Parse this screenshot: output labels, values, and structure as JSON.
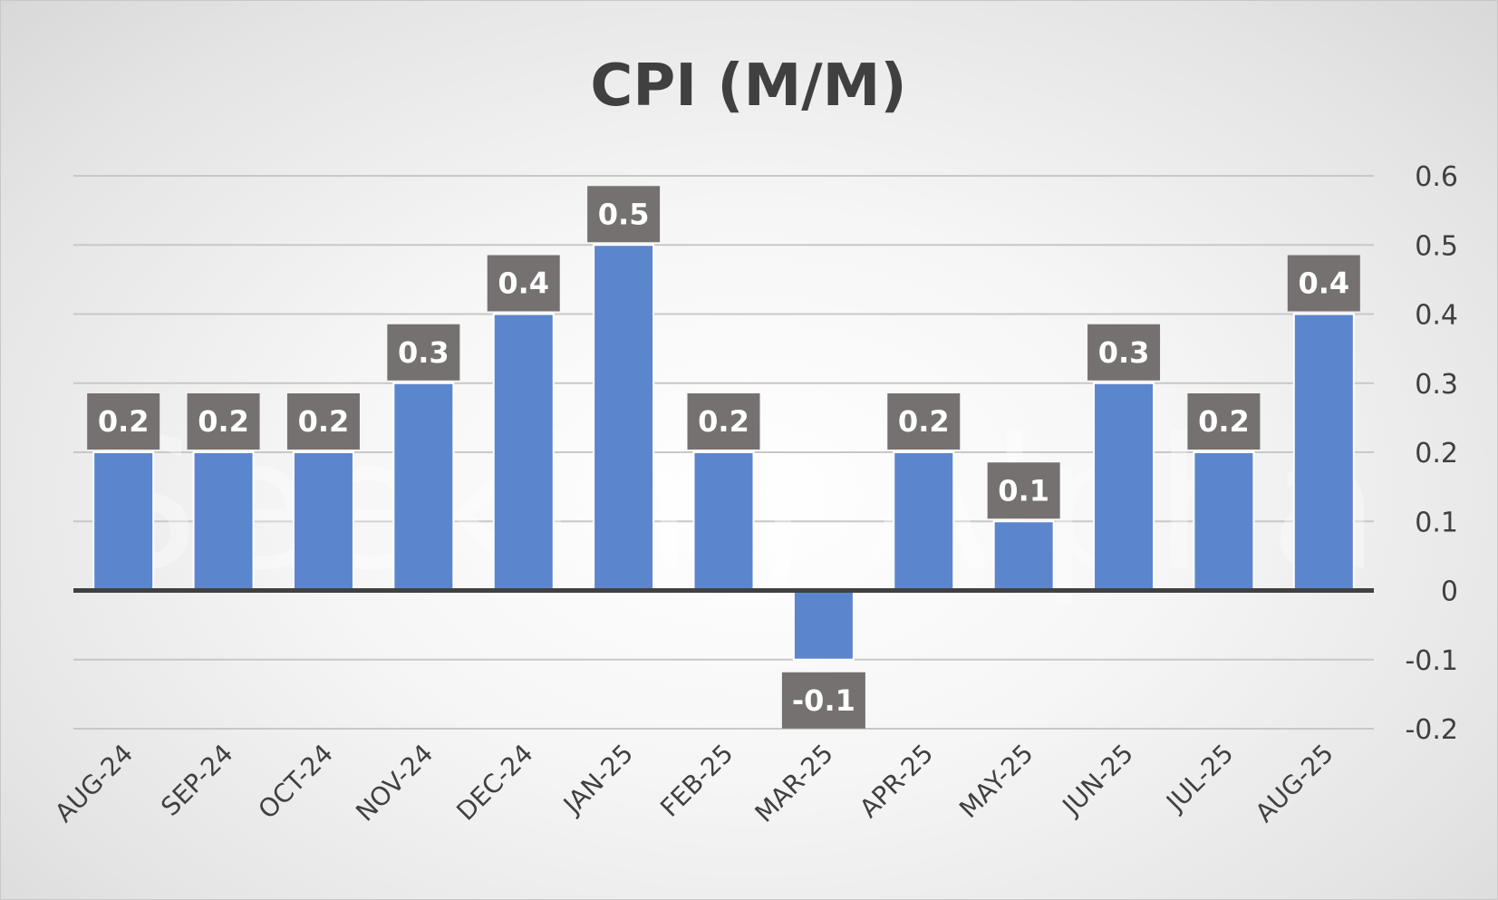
{
  "chart_data": {
    "type": "bar",
    "title": "CPI (M/M)",
    "xlabel": "",
    "ylabel": "",
    "categories": [
      "AUG-24",
      "SEP-24",
      "OCT-24",
      "NOV-24",
      "DEC-24",
      "JAN-25",
      "FEB-25",
      "MAR-25",
      "APR-25",
      "MAY-25",
      "JUN-25",
      "JUL-25",
      "AUG-25"
    ],
    "values": [
      0.2,
      0.2,
      0.2,
      0.3,
      0.4,
      0.5,
      0.2,
      -0.1,
      0.2,
      0.1,
      0.3,
      0.2,
      0.4
    ],
    "data_labels": [
      "0.2",
      "0.2",
      "0.2",
      "0.3",
      "0.4",
      "0.5",
      "0.2",
      "-0.1",
      "0.2",
      "0.1",
      "0.3",
      "0.2",
      "0.4"
    ],
    "ylim": [
      -0.2,
      0.6
    ],
    "yticks": [
      0.6,
      0.5,
      0.4,
      0.3,
      0.2,
      0.1,
      0,
      -0.1,
      -0.2
    ],
    "ytick_labels": [
      "0.6",
      "0.5",
      "0.4",
      "0.3",
      "0.2",
      "0.1",
      "0",
      "-0.1",
      "-0.2"
    ],
    "y_axis_side": "right",
    "grid": true,
    "legend": "none",
    "watermark": "Seeking Alpha",
    "colors": {
      "bar": "#5b86cd",
      "bar_edge": "#ffffff",
      "label_bg": "#767171",
      "label_text": "#ffffff",
      "gridline": "#c8c8c8",
      "zero_line": "#404040",
      "text": "#404040"
    }
  }
}
